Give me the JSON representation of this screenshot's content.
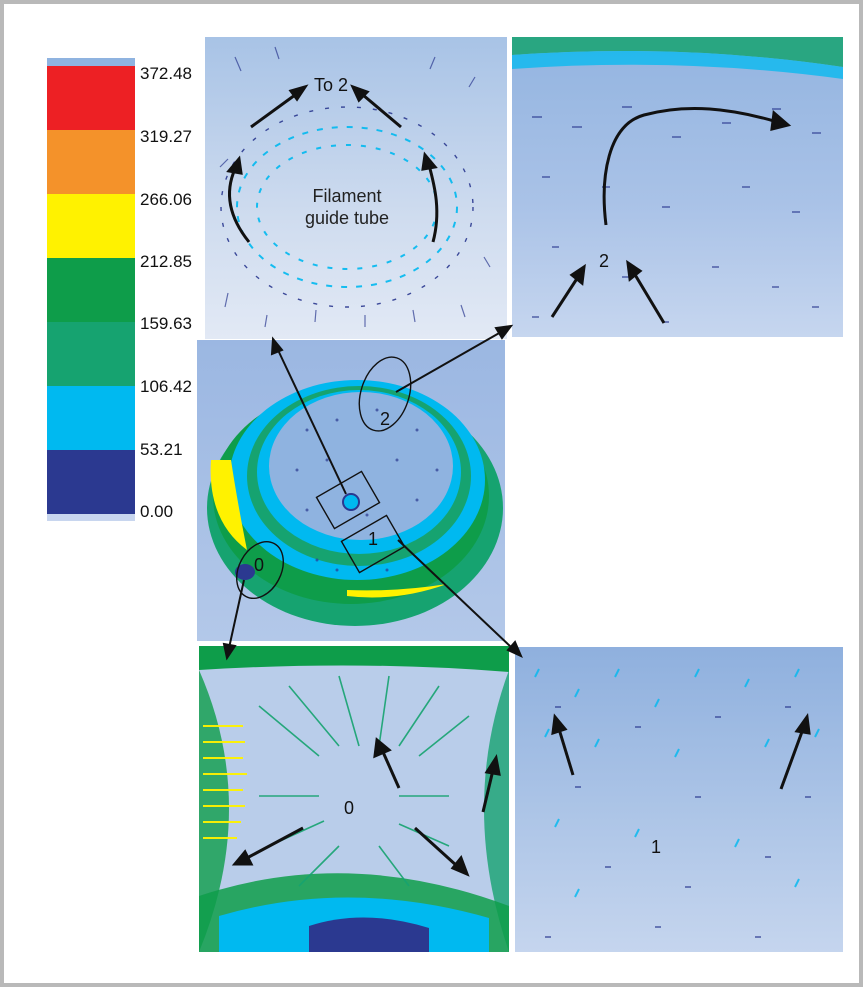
{
  "colors": {
    "band_1": "#ed2024",
    "band_2": "#f4922a",
    "band_3": "#fff200",
    "band_4": "#0e9d4a",
    "band_5": "#16a370",
    "band_6": "#00b9f0",
    "band_7": "#2b3990",
    "panel_bg": "#a6c0e2",
    "arrow": "#111111"
  },
  "legend": {
    "ticks": [
      "372.48",
      "319.27",
      "266.06",
      "212.85",
      "159.63",
      "106.42",
      "53.21",
      "0.00"
    ]
  },
  "panels": {
    "top_left": {
      "label_top": "To 2",
      "label_center": "Filament guide tube"
    },
    "top_right": {
      "label": "2"
    },
    "center": {
      "label_0": "0",
      "label_1": "1",
      "label_2": "2"
    },
    "bottom_left": {
      "label": "0"
    },
    "bottom_right": {
      "label": "1"
    }
  }
}
